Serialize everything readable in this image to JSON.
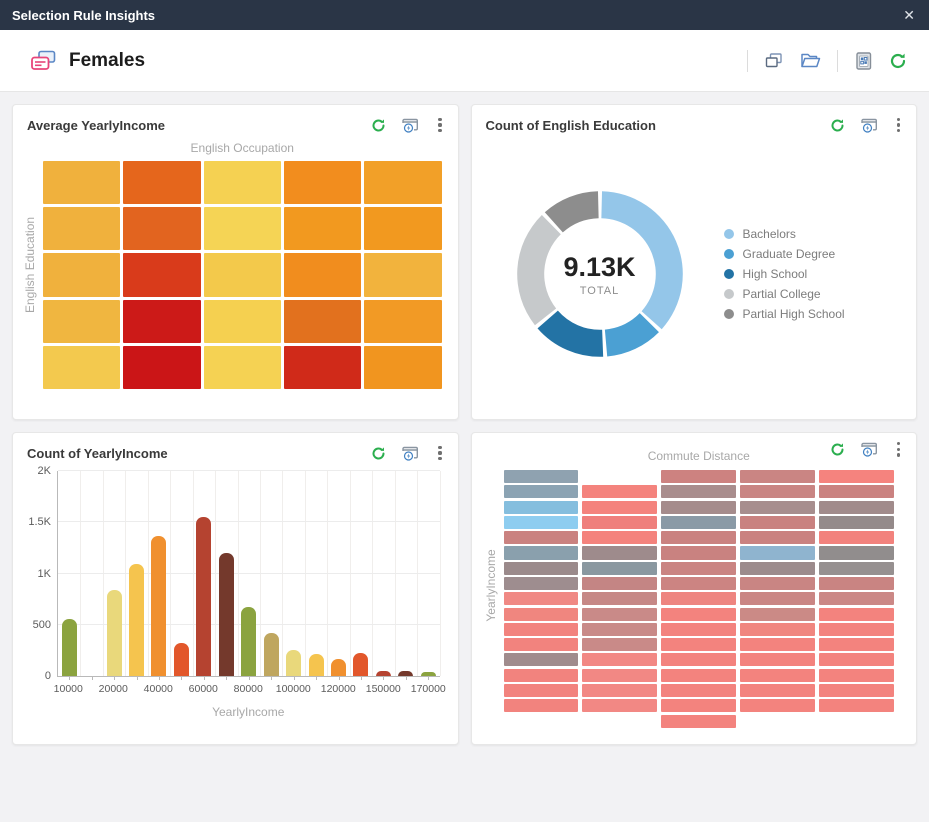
{
  "window": {
    "title": "Selection Rule Insights",
    "close_glyph": "✕"
  },
  "header": {
    "title": "Females",
    "segment_icon": "segment-cards-icon",
    "toolbar_icons": [
      "duplicate-icon",
      "open-folder-icon",
      "dashboard-grid-icon",
      "refresh-icon"
    ]
  },
  "panel_action_icons": [
    "refresh-icon",
    "live-update-icon",
    "more-menu-icon"
  ],
  "panels": {
    "heatmap": {
      "title": "Average YearlyIncome",
      "xlabel": "English Occupation",
      "ylabel": "English Education"
    },
    "donut": {
      "title": "Count of English Education",
      "center_value": "9.13K",
      "center_label": "TOTAL"
    },
    "bars": {
      "title": "Count of YearlyIncome",
      "xlabel": "YearlyIncome"
    },
    "mosaic": {
      "title": "",
      "xlabel": "Commute Distance",
      "ylabel": "YearlyIncome"
    }
  },
  "chart_data": [
    {
      "type": "heatmap",
      "title": "Average YearlyIncome",
      "xlabel": "English Occupation",
      "ylabel": "English Education",
      "rows": 5,
      "cols": 5,
      "cell_colors": [
        [
          "#f0b13d",
          "#e5661c",
          "#f5d152",
          "#f28d1e",
          "#f2a028"
        ],
        [
          "#f0b13d",
          "#e2641f",
          "#f5d455",
          "#f2991f",
          "#f2991f"
        ],
        [
          "#f0b13d",
          "#d93b1b",
          "#f3c94b",
          "#f18d1e",
          "#f2b33d"
        ],
        [
          "#f0b640",
          "#cc1a18",
          "#f5d050",
          "#e2711e",
          "#f29a25"
        ],
        [
          "#f3c94e",
          "#cb1517",
          "#f5d253",
          "#d02a19",
          "#f1951f"
        ]
      ]
    },
    {
      "type": "pie",
      "title": "Count of English Education",
      "center_value": "9.13K",
      "center_label": "TOTAL",
      "legend_position": "right",
      "slices": [
        {
          "label": "Bachelors",
          "share_pct": 37,
          "color": "#94c6e9"
        },
        {
          "label": "Graduate Degree",
          "share_pct": 12,
          "color": "#4ba0d3"
        },
        {
          "label": "High School",
          "share_pct": 15,
          "color": "#2373a5"
        },
        {
          "label": "Partial College",
          "share_pct": 24,
          "color": "#c6c9cb"
        },
        {
          "label": "Partial High School",
          "share_pct": 12,
          "color": "#8d8d8d"
        }
      ]
    },
    {
      "type": "bar",
      "title": "Count of YearlyIncome",
      "xlabel": "YearlyIncome",
      "ylabel": "",
      "ylim": [
        0,
        2000
      ],
      "grid": true,
      "yticks": [
        {
          "v": 0,
          "label": "0"
        },
        {
          "v": 500,
          "label": "500"
        },
        {
          "v": 1000,
          "label": "1K"
        },
        {
          "v": 1500,
          "label": "1.5K"
        },
        {
          "v": 2000,
          "label": "2K"
        }
      ],
      "categories": [
        10000,
        15000,
        20000,
        30000,
        40000,
        50000,
        60000,
        70000,
        80000,
        90000,
        100000,
        110000,
        120000,
        130000,
        150000,
        160000,
        170000
      ],
      "values": [
        560,
        0,
        840,
        1095,
        1370,
        325,
        1555,
        1200,
        670,
        415,
        255,
        215,
        165,
        220,
        50,
        45,
        40
      ],
      "bar_colors": [
        "#8ba33f",
        "#bfa65f",
        "#e9d87b",
        "#f5c44e",
        "#f0902f",
        "#e2572b",
        "#b54330",
        "#74392c",
        "#8ba33f",
        "#bfa65f",
        "#e9d87b",
        "#f5c44e",
        "#f0902f",
        "#e2572b",
        "#b54330",
        "#74392c",
        "#8ba33f"
      ],
      "tick_label_indices": [
        0,
        2,
        4,
        6,
        8,
        10,
        12,
        14,
        16
      ]
    },
    {
      "type": "heatmap",
      "title": "",
      "xlabel": "Commute Distance",
      "ylabel": "YearlyIncome",
      "rows": 17,
      "cols": 5,
      "cell_colors": [
        [
          "#8fa2b0",
          null,
          "#cd8280",
          "#ca8583",
          "#f5837e"
        ],
        [
          "#8ba3b3",
          "#f4837d",
          "#a98d8d",
          "#c98583",
          "#ca8280"
        ],
        [
          "#85bede",
          "#f4837d",
          "#a58c8c",
          "#a78e8e",
          "#a18b8b"
        ],
        [
          "#8ecdf0",
          "#ef7f7c",
          "#8a9aa6",
          "#c98280",
          "#948a8a"
        ],
        [
          "#ca8280",
          "#f4837d",
          "#ca8280",
          "#ca8280",
          "#f2827d"
        ],
        [
          "#8aa0ad",
          "#9e8b8c",
          "#c98280",
          "#8fb4cf",
          "#918d8d"
        ],
        [
          "#9b8a8b",
          "#8a98a0",
          "#ca8482",
          "#9c8b8c",
          "#969090"
        ],
        [
          "#9e8d8f",
          "#c48584",
          "#cc8482",
          "#c98583",
          "#c98482"
        ],
        [
          "#f08984",
          "#c68886",
          "#ee8580",
          "#ca8684",
          "#cb8886"
        ],
        [
          "#f0867f",
          "#c98a88",
          "#f3837e",
          "#cb8a86",
          "#f3837e"
        ],
        [
          "#f2837e",
          "#c98a88",
          "#f3837e",
          "#f0867f",
          "#f3837e"
        ],
        [
          "#f2837e",
          "#c98a88",
          "#f3837e",
          "#f3837e",
          "#f3837e"
        ],
        [
          "#a08c8d",
          "#f28884",
          "#f3837e",
          "#f3837e",
          "#f3837e"
        ],
        [
          "#f2837e",
          "#f28884",
          "#f3837e",
          "#f3837e",
          "#f3837e"
        ],
        [
          "#f2837e",
          "#f28884",
          "#f3837e",
          "#f3837e",
          "#f3837e"
        ],
        [
          "#f2837e",
          "#f28884",
          "#f3837e",
          "#f3837e",
          "#f3837e"
        ],
        [
          null,
          null,
          "#f3837e",
          null,
          null
        ]
      ]
    }
  ]
}
